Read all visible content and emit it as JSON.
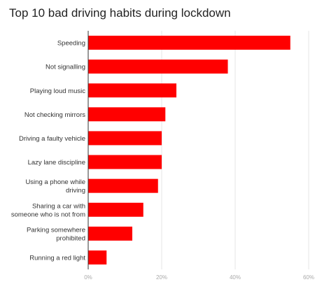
{
  "chart_data": {
    "type": "bar",
    "orientation": "horizontal",
    "title": "Top 10 bad driving habits during lockdown",
    "categories": [
      [
        "Speeding"
      ],
      [
        "Not signalling"
      ],
      [
        "Playing loud music"
      ],
      [
        "Not checking mirrors"
      ],
      [
        "Driving a faulty vehicle"
      ],
      [
        "Lazy lane discipline"
      ],
      [
        "Using a phone while",
        "driving"
      ],
      [
        "Sharing a car with",
        "someone who is not from"
      ],
      [
        "Parking somewhere",
        "prohibited"
      ],
      [
        "Running a red light"
      ]
    ],
    "values": [
      55,
      38,
      24,
      21,
      20,
      20,
      19,
      15,
      12,
      5
    ],
    "xlim": [
      0,
      60
    ],
    "xticks": [
      0,
      20,
      40,
      60
    ],
    "tick_format": "{v}%",
    "xlabel": "",
    "ylabel": "",
    "grid": true,
    "legend": "none",
    "colors": {
      "bar": "#ff0000",
      "grid": "#e6e6e6",
      "axis": "#333333"
    }
  }
}
